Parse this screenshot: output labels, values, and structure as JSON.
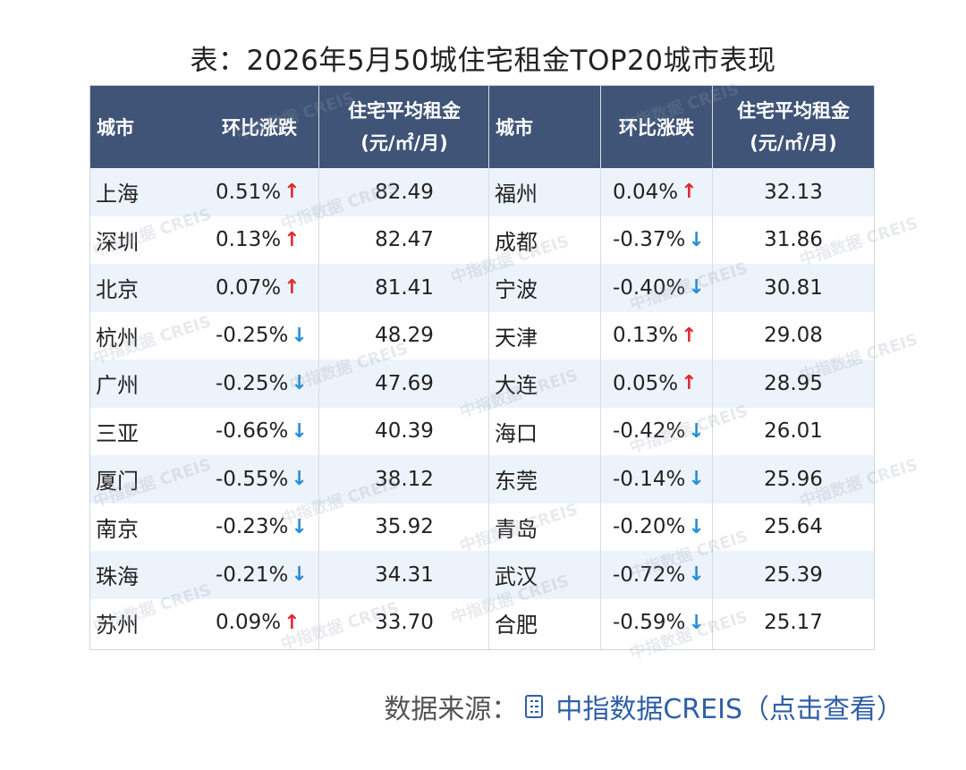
{
  "title": "表：2026年5月50城住宅租金TOP20城市表现",
  "header": {
    "city": "城市",
    "change": "环比涨跌",
    "rent_line1": "住宅平均租金",
    "rent_line2": "(元/㎡/月)"
  },
  "rows": [
    {
      "c1": "上海",
      "h1": "0.51%",
      "d1": "up",
      "r1": "82.49",
      "c2": "福州",
      "h2": "0.04%",
      "d2": "up",
      "r2": "32.13"
    },
    {
      "c1": "深圳",
      "h1": "0.13%",
      "d1": "up",
      "r1": "82.47",
      "c2": "成都",
      "h2": "-0.37%",
      "d2": "down",
      "r2": "31.86"
    },
    {
      "c1": "北京",
      "h1": "0.07%",
      "d1": "up",
      "r1": "81.41",
      "c2": "宁波",
      "h2": "-0.40%",
      "d2": "down",
      "r2": "30.81"
    },
    {
      "c1": "杭州",
      "h1": "-0.25%",
      "d1": "down",
      "r1": "48.29",
      "c2": "天津",
      "h2": "0.13%",
      "d2": "up",
      "r2": "29.08"
    },
    {
      "c1": "广州",
      "h1": "-0.25%",
      "d1": "down",
      "r1": "47.69",
      "c2": "大连",
      "h2": "0.05%",
      "d2": "up",
      "r2": "28.95"
    },
    {
      "c1": "三亚",
      "h1": "-0.66%",
      "d1": "down",
      "r1": "40.39",
      "c2": "海口",
      "h2": "-0.42%",
      "d2": "down",
      "r2": "26.01"
    },
    {
      "c1": "厦门",
      "h1": "-0.55%",
      "d1": "down",
      "r1": "38.12",
      "c2": "东莞",
      "h2": "-0.14%",
      "d2": "down",
      "r2": "25.96"
    },
    {
      "c1": "南京",
      "h1": "-0.23%",
      "d1": "down",
      "r1": "35.92",
      "c2": "青岛",
      "h2": "-0.20%",
      "d2": "down",
      "r2": "25.64"
    },
    {
      "c1": "珠海",
      "h1": "-0.21%",
      "d1": "down",
      "r1": "34.31",
      "c2": "武汉",
      "h2": "-0.72%",
      "d2": "down",
      "r2": "25.39"
    },
    {
      "c1": "苏州",
      "h1": "0.09%",
      "d1": "up",
      "r1": "33.70",
      "c2": "合肥",
      "h2": "-0.59%",
      "d2": "down",
      "r2": "25.17"
    }
  ],
  "arrows": {
    "up": "↑",
    "down": "↓"
  },
  "watermark": "中指数据 CREIS",
  "source": {
    "prefix": "数据来源：",
    "link": "中指数据CREIS",
    "suffix": "（点击查看）"
  }
}
